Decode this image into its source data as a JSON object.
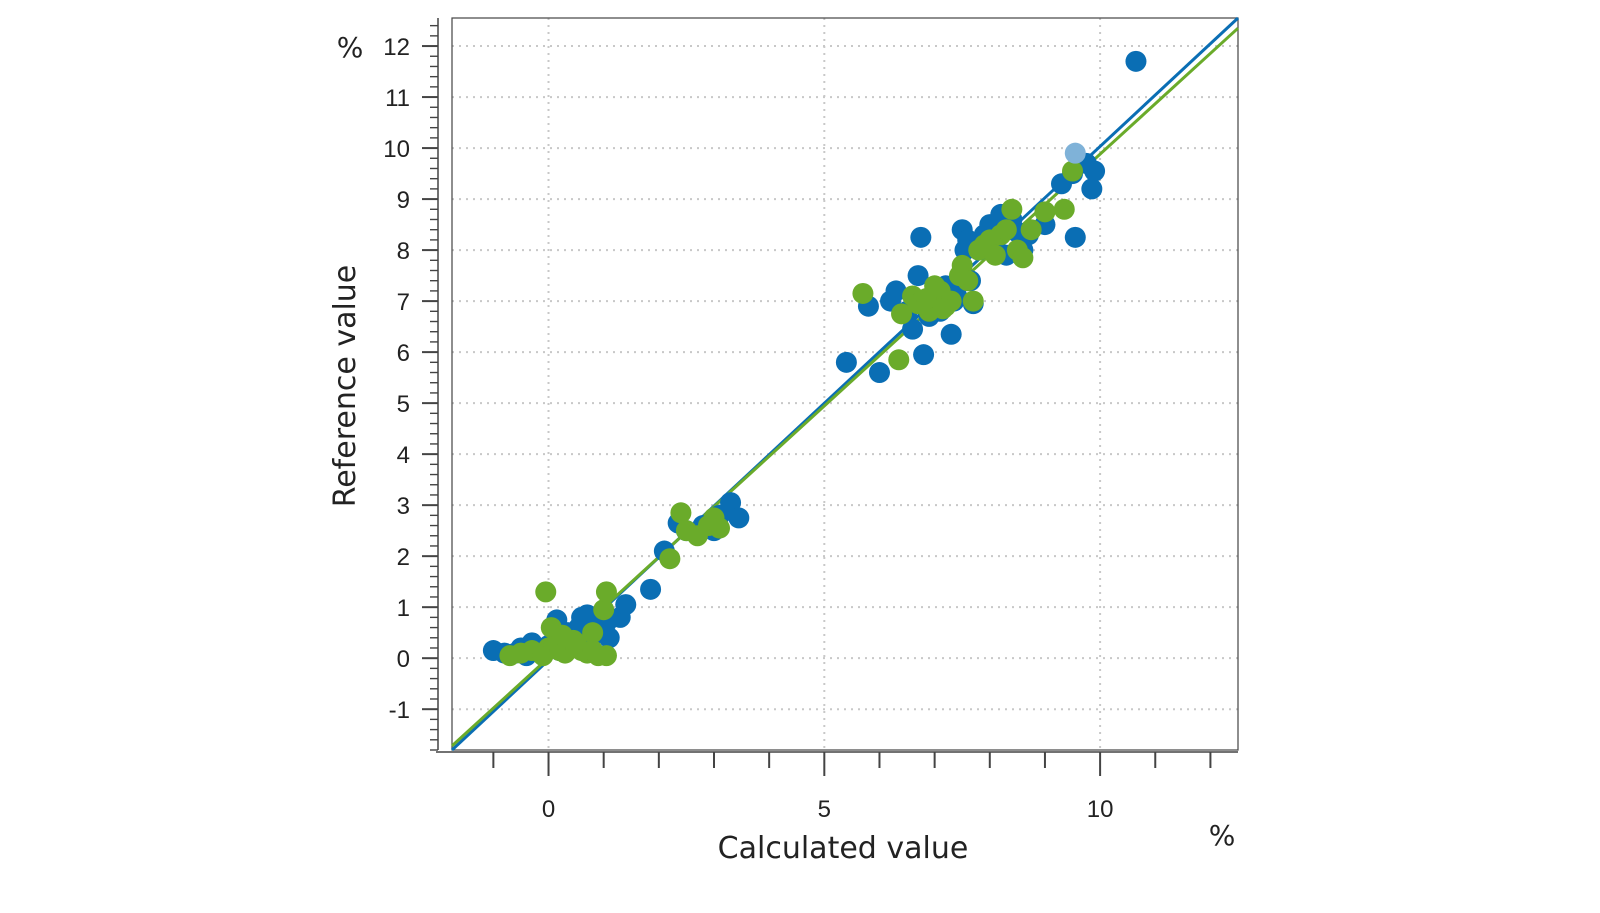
{
  "chart_data": {
    "type": "scatter",
    "xlabel": "Calculated value",
    "ylabel": "Reference value",
    "x_unit": "%",
    "y_unit": "%",
    "xlim": [
      -1.75,
      12.5
    ],
    "ylim": [
      -1.8,
      12.55
    ],
    "x_ticks": [
      0,
      5,
      10
    ],
    "y_ticks": [
      -1,
      0,
      1,
      2,
      3,
      4,
      5,
      6,
      7,
      8,
      9,
      10,
      11,
      12
    ],
    "grid": true,
    "legend": "none",
    "colors": {
      "series_blue": "#0a6eb4",
      "series_green": "#6aab2a",
      "highlight": "#7fb2d8",
      "grid": "#c8c8c8",
      "axis": "#444444"
    },
    "regression_lines": [
      {
        "color": "#0a6eb4",
        "x": [
          -1.75,
          12.5
        ],
        "y": [
          -1.8,
          12.55
        ]
      },
      {
        "color": "#6aab2a",
        "x": [
          -1.75,
          12.5
        ],
        "y": [
          -1.72,
          12.35
        ]
      }
    ],
    "series": [
      {
        "color": "#0a6eb4",
        "x": [
          -1.0,
          -0.8,
          -0.6,
          -0.5,
          -0.4,
          -0.3,
          -0.2,
          -0.1,
          0.0,
          0.1,
          0.2,
          0.3,
          0.4,
          0.5,
          0.6,
          0.7,
          0.8,
          0.9,
          1.0,
          1.1,
          0.15,
          0.35,
          0.55,
          0.75,
          1.05,
          1.3,
          1.4,
          1.85,
          2.1,
          2.35,
          2.5,
          2.8,
          3.0,
          3.1,
          3.3,
          3.45,
          5.4,
          5.8,
          6.0,
          6.2,
          6.3,
          6.5,
          6.6,
          6.7,
          6.8,
          6.9,
          7.0,
          7.1,
          7.2,
          7.3,
          7.4,
          7.5,
          7.6,
          7.7,
          7.8,
          7.9,
          8.0,
          8.1,
          8.2,
          8.3,
          8.4,
          8.5,
          8.6,
          8.7,
          7.35,
          7.65,
          7.15,
          6.75,
          7.55,
          9.0,
          9.3,
          9.5,
          9.55,
          9.75,
          9.85,
          9.9,
          10.65
        ],
        "y": [
          0.15,
          0.1,
          0.1,
          0.2,
          0.05,
          0.3,
          0.2,
          0.1,
          0.25,
          0.3,
          0.15,
          0.4,
          0.3,
          0.2,
          0.8,
          0.85,
          0.6,
          0.8,
          0.9,
          0.4,
          0.75,
          0.5,
          0.6,
          0.35,
          0.7,
          0.8,
          1.05,
          1.35,
          2.1,
          2.65,
          2.5,
          2.6,
          2.5,
          2.8,
          3.05,
          2.75,
          5.8,
          6.9,
          5.6,
          7.0,
          7.2,
          6.8,
          6.45,
          7.5,
          5.95,
          6.7,
          7.2,
          6.8,
          7.3,
          6.35,
          7.1,
          8.4,
          8.2,
          6.95,
          8.0,
          8.3,
          8.5,
          8.15,
          8.7,
          7.9,
          8.6,
          8.35,
          8.0,
          8.3,
          7.0,
          7.4,
          6.9,
          8.25,
          8.0,
          8.5,
          9.3,
          9.5,
          8.25,
          9.7,
          9.2,
          9.55,
          11.7
        ]
      },
      {
        "color": "#6aab2a",
        "x": [
          -0.7,
          -0.5,
          -0.3,
          -0.1,
          0.0,
          0.1,
          0.2,
          0.3,
          0.4,
          0.5,
          0.6,
          0.7,
          0.8,
          0.9,
          1.05,
          0.05,
          0.25,
          0.45,
          1.0,
          1.05,
          -0.05,
          0.5,
          0.8,
          2.2,
          2.4,
          2.5,
          2.7,
          2.9,
          3.0,
          3.1,
          5.7,
          6.35,
          6.4,
          6.6,
          6.7,
          6.9,
          7.0,
          7.1,
          7.2,
          7.3,
          7.5,
          7.6,
          7.7,
          7.8,
          7.9,
          8.0,
          8.1,
          8.2,
          8.3,
          8.4,
          8.5,
          8.6,
          8.75,
          9.0,
          9.35,
          9.5,
          7.45,
          6.85,
          7.15
        ],
        "y": [
          0.05,
          0.1,
          0.15,
          0.05,
          0.2,
          0.25,
          0.15,
          0.1,
          0.3,
          0.2,
          0.15,
          0.1,
          0.5,
          0.05,
          0.05,
          0.6,
          0.45,
          0.35,
          0.95,
          1.3,
          1.3,
          0.3,
          0.15,
          1.95,
          2.85,
          2.5,
          2.4,
          2.6,
          2.75,
          2.55,
          7.15,
          5.85,
          6.75,
          7.1,
          6.95,
          6.8,
          7.3,
          7.2,
          6.9,
          7.0,
          7.7,
          7.4,
          7.0,
          8.0,
          8.1,
          8.2,
          7.9,
          8.3,
          8.4,
          8.8,
          8.0,
          7.85,
          8.4,
          8.75,
          8.8,
          9.55,
          7.5,
          7.05,
          6.85
        ]
      },
      {
        "color": "#7fb2d8",
        "x": [
          9.55
        ],
        "y": [
          9.9
        ]
      }
    ]
  }
}
